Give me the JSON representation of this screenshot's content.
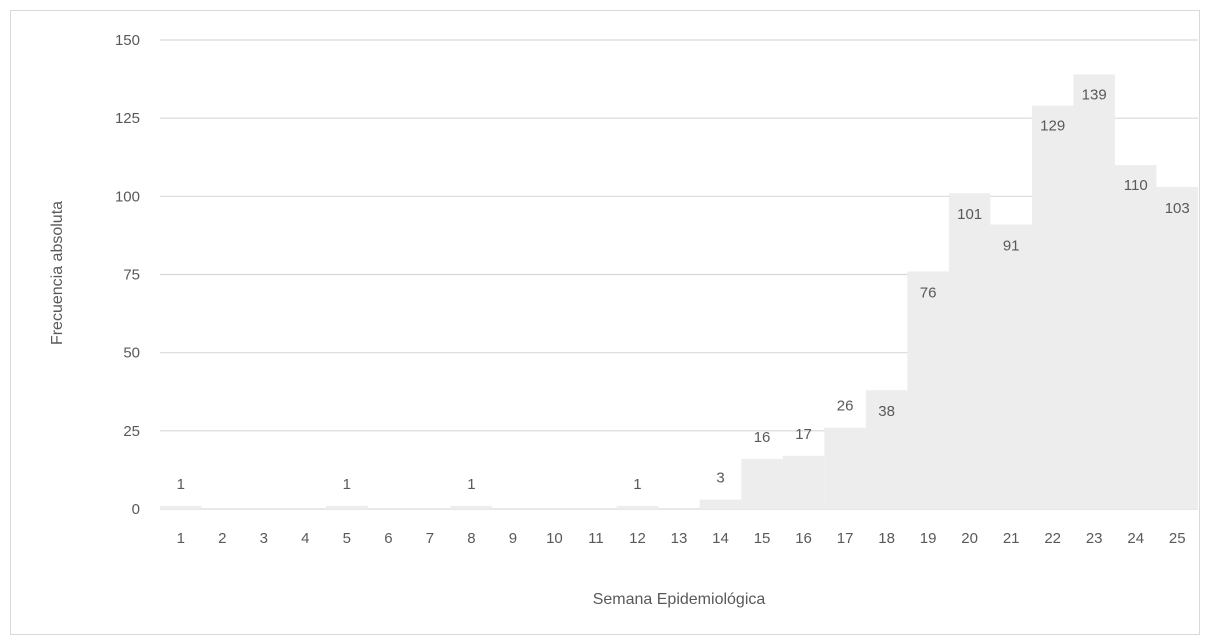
{
  "chart_data": {
    "type": "bar",
    "title": "",
    "xlabel": "Semana Epidemiológica",
    "ylabel": "Frecuencia absoluta",
    "ylim": [
      0,
      150
    ],
    "yticks": [
      0,
      25,
      50,
      75,
      100,
      125,
      150
    ],
    "grid": true,
    "legend": "none",
    "categories": [
      "1",
      "2",
      "3",
      "4",
      "5",
      "6",
      "7",
      "8",
      "9",
      "10",
      "11",
      "12",
      "13",
      "14",
      "15",
      "16",
      "17",
      "18",
      "19",
      "20",
      "21",
      "22",
      "23",
      "24",
      "25"
    ],
    "values": [
      1,
      0,
      0,
      0,
      1,
      0,
      0,
      1,
      0,
      0,
      0,
      1,
      0,
      3,
      16,
      17,
      26,
      38,
      76,
      101,
      91,
      129,
      139,
      110,
      103
    ],
    "data_labels": [
      "1",
      "",
      "",
      "",
      "1",
      "",
      "",
      "1",
      "",
      "",
      "",
      "1",
      "",
      "3",
      "16",
      "17",
      "26",
      "38",
      "76",
      "101",
      "91",
      "129",
      "139",
      "110",
      "103"
    ],
    "colors": {
      "bar": "#ededed",
      "grid": "#d9d9d9",
      "text": "#595959"
    }
  }
}
